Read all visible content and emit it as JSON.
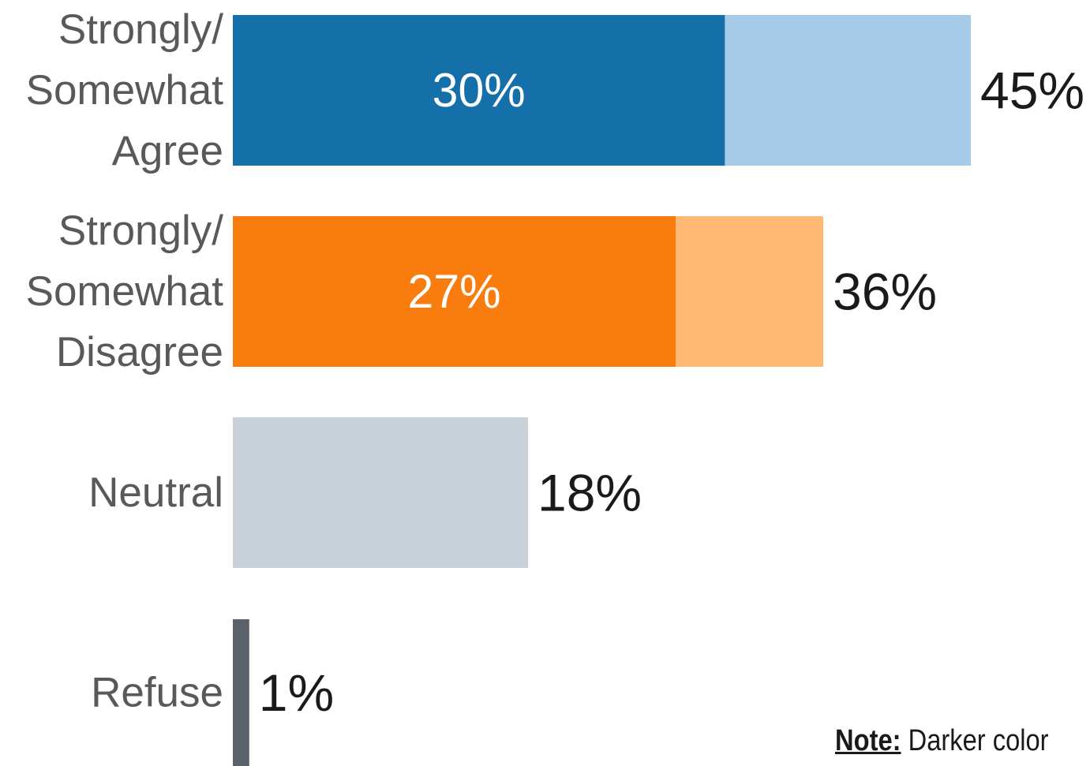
{
  "chart_data": {
    "type": "bar",
    "orientation": "horizontal",
    "stacked": true,
    "grid": false,
    "legend": "none",
    "xlim": [
      0,
      45
    ],
    "value_unit": "%",
    "categories": [
      [
        "Strongly/",
        "Somewhat",
        "Agree"
      ],
      [
        "Strongly/",
        "Somewhat",
        "Disagree"
      ],
      [
        "Neutral"
      ],
      [
        "Refuse"
      ]
    ],
    "bars": [
      {
        "total": 45,
        "total_label": "45%",
        "strong": 30,
        "strong_label": "30%",
        "dark_color": "#1570aa",
        "light_color": "#a6cbe8"
      },
      {
        "total": 36,
        "total_label": "36%",
        "strong": 27,
        "strong_label": "27%",
        "dark_color": "#f97d0e",
        "light_color": "#ffb974"
      },
      {
        "total": 18,
        "total_label": "18%",
        "strong": null,
        "strong_label": "",
        "dark_color": null,
        "light_color": "#c8d0da"
      },
      {
        "total": 1,
        "total_label": "1%",
        "strong": null,
        "strong_label": "",
        "dark_color": null,
        "light_color": "#5b616b"
      }
    ]
  },
  "note": {
    "key": "Note:",
    "text": " Darker color"
  }
}
